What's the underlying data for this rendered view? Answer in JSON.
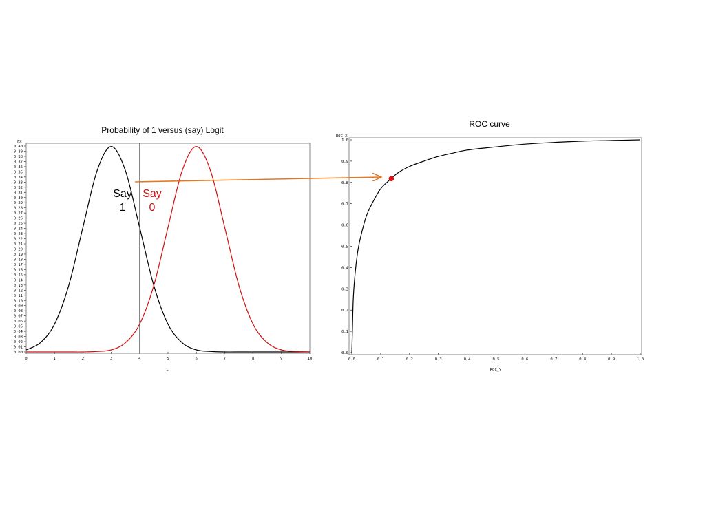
{
  "colors": {
    "curve_say1": "#000000",
    "curve_say0": "#cc1111",
    "arrow": "#e8761e",
    "roc_point": "#dd1111",
    "threshold_line": "#555555"
  },
  "chart_data": [
    {
      "type": "line",
      "title": "Probability of 1 versus (say) Logit",
      "xlabel": "L",
      "ylabel": "FX",
      "xlim": [
        0,
        10
      ],
      "ylim": [
        0,
        0.4
      ],
      "x_ticks": [
        "0",
        "1",
        "2",
        "3",
        "4",
        "5",
        "6",
        "7",
        "8",
        "9",
        "10"
      ],
      "y_ticks": [
        "0.00",
        "0.01",
        "0.02",
        "0.03",
        "0.04",
        "0.05",
        "0.06",
        "0.07",
        "0.08",
        "0.09",
        "0.10",
        "0.11",
        "0.12",
        "0.13",
        "0.14",
        "0.15",
        "0.16",
        "0.17",
        "0.18",
        "0.19",
        "0.20",
        "0.21",
        "0.22",
        "0.23",
        "0.24",
        "0.25",
        "0.26",
        "0.27",
        "0.28",
        "0.29",
        "0.30",
        "0.31",
        "0.32",
        "0.33",
        "0.34",
        "0.35",
        "0.36",
        "0.37",
        "0.38",
        "0.39",
        "0.40"
      ],
      "series": [
        {
          "color": "#000000",
          "x": [
            0,
            0.5,
            1,
            1.5,
            2,
            2.5,
            3,
            3.5,
            4,
            4.5,
            5,
            5.5,
            6,
            6.5,
            7,
            7.5,
            8,
            8.5,
            9,
            9.5,
            10
          ],
          "y": [
            0.004,
            0.018,
            0.054,
            0.129,
            0.242,
            0.352,
            0.399,
            0.352,
            0.242,
            0.129,
            0.054,
            0.018,
            0.004,
            0.001,
            0.0,
            0.0,
            0.0,
            0.0,
            0.0,
            0.0,
            0.0
          ]
        },
        {
          "color": "#cc1111",
          "x": [
            0,
            0.5,
            1,
            1.5,
            2,
            2.5,
            3,
            3.5,
            4,
            4.5,
            5,
            5.5,
            6,
            6.5,
            7,
            7.5,
            8,
            8.5,
            9,
            9.5,
            10
          ],
          "y": [
            0.0,
            0.0,
            0.0,
            0.0,
            0.0,
            0.001,
            0.004,
            0.018,
            0.054,
            0.129,
            0.242,
            0.352,
            0.399,
            0.352,
            0.242,
            0.129,
            0.054,
            0.018,
            0.004,
            0.001,
            0.0
          ]
        }
      ],
      "threshold_x": 4,
      "annotations": {
        "say1_line1": "Say",
        "say1_line2": "1",
        "say0_line1": "Say",
        "say0_line2": "0"
      }
    },
    {
      "type": "line",
      "title": "ROC curve",
      "xlabel": "ROC_Y",
      "ylabel": "ROC_X",
      "xlim": [
        0,
        1
      ],
      "ylim": [
        0,
        1
      ],
      "x_ticks": [
        "0.0",
        "0.1",
        "0.2",
        "0.3",
        "0.4",
        "0.5",
        "0.6",
        "0.7",
        "0.8",
        "0.9",
        "1.0"
      ],
      "y_ticks": [
        "0.0",
        "0.1",
        "0.2",
        "0.3",
        "0.4",
        "0.5",
        "0.6",
        "0.7",
        "0.8",
        "0.9",
        "1.0"
      ],
      "series": [
        {
          "color": "#000000",
          "x": [
            0,
            0.002,
            0.005,
            0.01,
            0.02,
            0.03,
            0.05,
            0.07,
            0.1,
            0.13,
            0.16,
            0.2,
            0.25,
            0.3,
            0.35,
            0.4,
            0.5,
            0.6,
            0.7,
            0.8,
            0.9,
            1.0
          ],
          "y": [
            0,
            0.1,
            0.25,
            0.35,
            0.47,
            0.54,
            0.64,
            0.7,
            0.77,
            0.81,
            0.845,
            0.875,
            0.9,
            0.922,
            0.938,
            0.952,
            0.967,
            0.98,
            0.988,
            0.994,
            0.997,
            1.0
          ]
        }
      ],
      "highlight_point": {
        "x": 0.137,
        "y": 0.818
      }
    }
  ]
}
